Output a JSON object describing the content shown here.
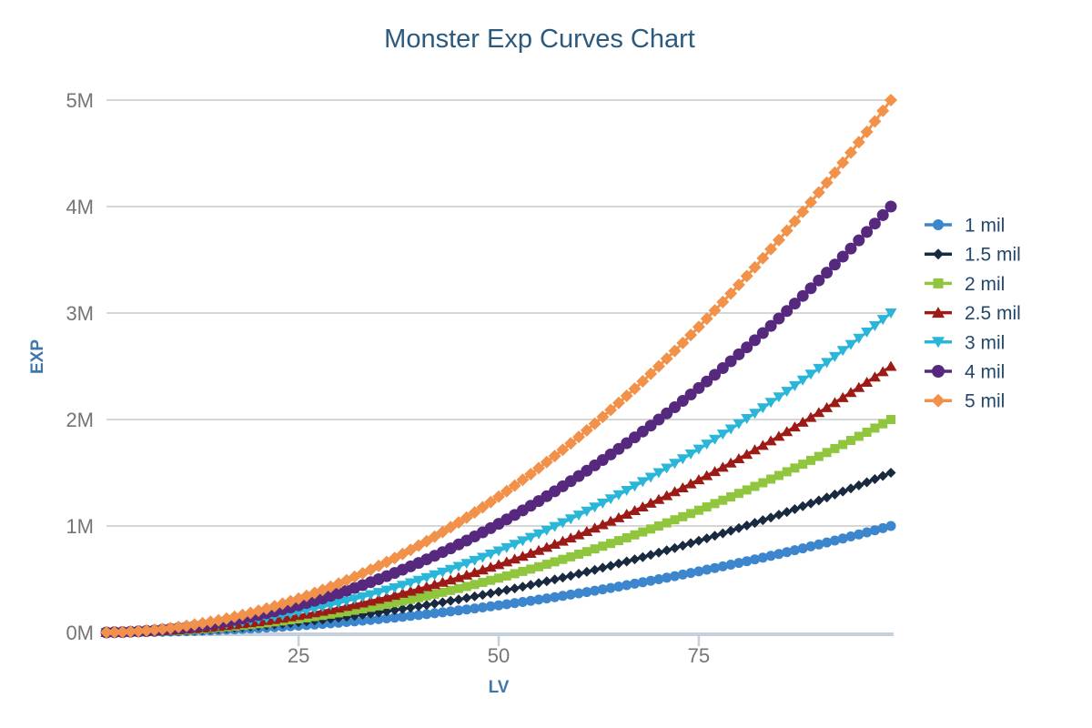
{
  "title": "Monster Exp Curves Chart",
  "colors": {
    "background": "#ffffff",
    "title": "#2b5a7f",
    "axis_title": "#4077aa",
    "tick_label": "#757575",
    "gridline": "#d0d0d0",
    "axis_line": "#c5d0dd",
    "legend_text": "#24476b"
  },
  "chart_data": {
    "type": "line",
    "title": "Monster Exp Curves Chart",
    "xlabel": "LV",
    "ylabel": "EXP",
    "x_ticks": [
      25,
      50,
      75
    ],
    "y_ticks": [
      "0M",
      "1M",
      "2M",
      "3M",
      "4M",
      "5M"
    ],
    "y_tick_values": [
      0,
      1000000,
      2000000,
      3000000,
      4000000,
      5000000
    ],
    "xlim": [
      1,
      99
    ],
    "ylim": [
      0,
      5000000
    ],
    "grid": true,
    "legend_position": "right",
    "lv_min": 1,
    "lv_max": 99,
    "exponent": 2,
    "curve_formula": "exp(lv) = total * (lv / 99)^2",
    "series": [
      {
        "name": "1 mil",
        "total": 1000000,
        "color": "#3c86cd",
        "marker": "circle",
        "marker_size": 5.5,
        "samples": {
          "lv": [
            25,
            50,
            75,
            99
          ],
          "exp": [
            63769,
            255076,
            573921,
            1000000
          ]
        }
      },
      {
        "name": "1.5 mil",
        "total": 1500000,
        "color": "#192940",
        "marker": "diamond",
        "marker_size": 5.5,
        "samples": {
          "lv": [
            25,
            50,
            75,
            99
          ],
          "exp": [
            95653,
            382614,
            860882,
            1500000
          ]
        }
      },
      {
        "name": "2 mil",
        "total": 2000000,
        "color": "#8fc63e",
        "marker": "square",
        "marker_size": 5,
        "samples": {
          "lv": [
            25,
            50,
            75,
            99
          ],
          "exp": [
            127537,
            510152,
            1147842,
            2000000
          ]
        }
      },
      {
        "name": "2.5 mil",
        "total": 2500000,
        "color": "#9c1b16",
        "marker": "triangle-up",
        "marker_size": 6,
        "samples": {
          "lv": [
            25,
            50,
            75,
            99
          ],
          "exp": [
            159421,
            637690,
            1434803,
            2500000
          ]
        }
      },
      {
        "name": "3 mil",
        "total": 3000000,
        "color": "#29b6d8",
        "marker": "triangle-down",
        "marker_size": 6,
        "samples": {
          "lv": [
            25,
            50,
            75,
            99
          ],
          "exp": [
            191306,
            765228,
            1721763,
            3000000
          ]
        }
      },
      {
        "name": "4 mil",
        "total": 4000000,
        "color": "#57297e",
        "marker": "circle",
        "marker_size": 6.5,
        "samples": {
          "lv": [
            25,
            50,
            75,
            99
          ],
          "exp": [
            255074,
            1020304,
            2295684,
            4000000
          ]
        }
      },
      {
        "name": "5 mil",
        "total": 5000000,
        "color": "#f2914a",
        "marker": "diamond",
        "marker_size": 7,
        "samples": {
          "lv": [
            25,
            50,
            75,
            99
          ],
          "exp": [
            318843,
            1275380,
            2869606,
            5000000
          ]
        }
      }
    ]
  }
}
